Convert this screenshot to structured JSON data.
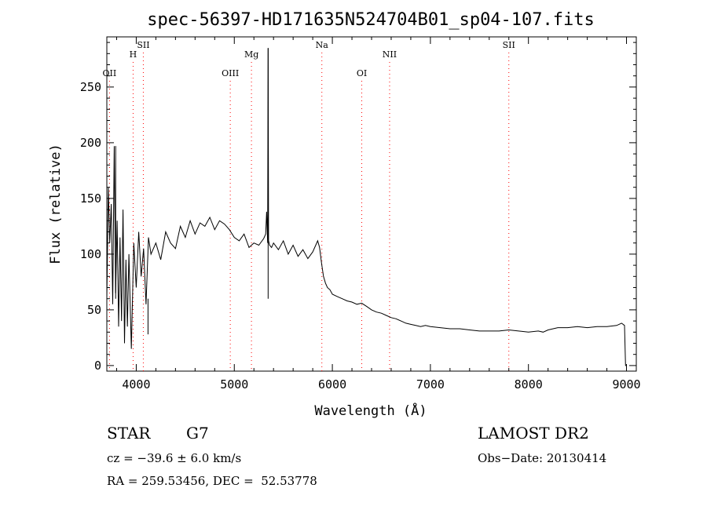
{
  "chart_data": {
    "type": "line",
    "title": "spec-56397-HD171635N524704B01_sp04-107.fits",
    "xlabel": "Wavelength (Å)",
    "ylabel": "Flux (relative)",
    "xlim": [
      3700,
      9100
    ],
    "ylim": [
      -5,
      295
    ],
    "xticks": [
      4000,
      5000,
      6000,
      7000,
      8000,
      9000
    ],
    "yticks": [
      0,
      50,
      100,
      150,
      200,
      250
    ],
    "grid": false,
    "line_color": "#000000",
    "marker_color": "#ff0000",
    "series": [
      {
        "x": [
          3700,
          3715,
          3730,
          3745,
          3760,
          3775,
          3790,
          3805,
          3820,
          3835,
          3850,
          3865,
          3880,
          3895,
          3910,
          3925,
          3950,
          3975,
          4000,
          4025,
          4050,
          4075,
          4100,
          4125,
          4150,
          4200,
          4250,
          4300,
          4350,
          4400,
          4450,
          4500,
          4550,
          4600,
          4650,
          4700,
          4750,
          4800,
          4850,
          4900,
          4950,
          5000,
          5050,
          5100,
          5150,
          5200,
          5250,
          5300,
          5320,
          5330,
          5340,
          5345,
          5350,
          5360,
          5380,
          5400,
          5450,
          5500,
          5550,
          5600,
          5650,
          5700,
          5750,
          5800,
          5850,
          5870,
          5890,
          5910,
          5930,
          5950,
          5975,
          6000,
          6050,
          6100,
          6150,
          6200,
          6250,
          6300,
          6350,
          6400,
          6450,
          6500,
          6550,
          6600,
          6650,
          6700,
          6750,
          6800,
          6850,
          6900,
          6950,
          7000,
          7100,
          7200,
          7300,
          7400,
          7500,
          7600,
          7700,
          7800,
          7900,
          8000,
          8100,
          8150,
          8200,
          8300,
          8400,
          8500,
          8600,
          8700,
          8800,
          8900,
          8950,
          8980,
          8990,
          8995,
          9000
        ],
        "y": [
          60,
          160,
          110,
          145,
          55,
          197,
          65,
          130,
          35,
          115,
          40,
          140,
          20,
          95,
          35,
          100,
          15,
          110,
          70,
          120,
          80,
          105,
          55,
          115,
          100,
          110,
          95,
          120,
          110,
          105,
          125,
          115,
          130,
          118,
          128,
          125,
          133,
          122,
          130,
          127,
          122,
          115,
          112,
          118,
          106,
          110,
          108,
          114,
          118,
          138,
          110,
          285,
          112,
          108,
          106,
          110,
          104,
          112,
          100,
          108,
          98,
          104,
          96,
          102,
          112,
          106,
          92,
          80,
          74,
          70,
          68,
          64,
          62,
          60,
          58,
          57,
          55,
          56,
          53,
          50,
          48,
          47,
          45,
          43,
          42,
          40,
          38,
          37,
          36,
          35,
          36,
          35,
          34,
          33,
          33,
          32,
          31,
          31,
          31,
          32,
          31,
          30,
          31,
          30,
          32,
          34,
          34,
          35,
          34,
          35,
          35,
          36,
          38,
          36,
          0,
          0,
          0
        ],
        "spikes": [
          {
            "x": 3790,
            "y": 197
          },
          {
            "x": 4120,
            "y": 28
          },
          {
            "x": 5345,
            "y": 285
          }
        ]
      }
    ],
    "line_markers": [
      {
        "label": "OII",
        "x": 3727,
        "level": 3
      },
      {
        "label": "H",
        "x": 3968,
        "level": 1
      },
      {
        "label": "SII",
        "x": 4072,
        "level": 0
      },
      {
        "label": "OIII",
        "x": 4959,
        "level": 3
      },
      {
        "label": "Mg",
        "x": 5175,
        "level": 1
      },
      {
        "label": "Na",
        "x": 5893,
        "level": 0
      },
      {
        "label": "OI",
        "x": 6300,
        "level": 3
      },
      {
        "label": "NII",
        "x": 6584,
        "level": 1
      },
      {
        "label": "SII",
        "x": 7800,
        "level": 0
      }
    ]
  },
  "info": {
    "class": "STAR",
    "subclass": "G7",
    "survey": "LAMOST DR2",
    "cz": "cz = −39.6 ± 6.0 km/s",
    "obsdate": "Obs−Date: 20130414",
    "coords": "RA = 259.53456, DEC =  52.53778"
  }
}
